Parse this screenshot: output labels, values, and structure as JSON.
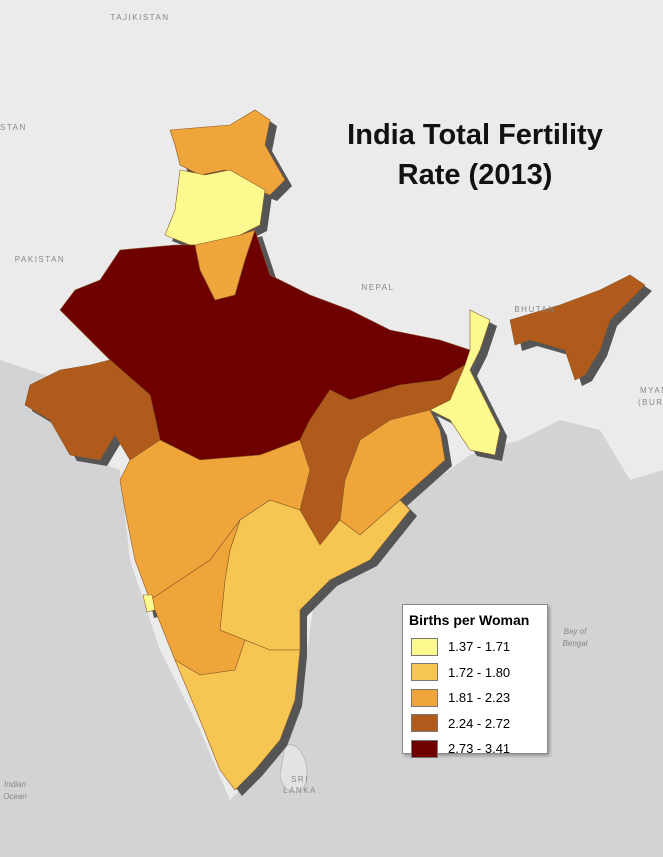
{
  "title": "India Total Fertility Rate (2013)",
  "legend": {
    "title": "Births per Woman",
    "classes": [
      {
        "label": "1.37 - 1.71",
        "color": "#fcfa8e"
      },
      {
        "label": "1.72 - 1.80",
        "color": "#f6c552"
      },
      {
        "label": "1.81 - 2.23",
        "color": "#f0a53a"
      },
      {
        "label": "2.24 - 2.72",
        "color": "#b05a1c"
      },
      {
        "label": "2.73 - 3.41",
        "color": "#6e0000"
      }
    ]
  },
  "regions": [
    2,
    0,
    2,
    4,
    3,
    2,
    3,
    2,
    0,
    3,
    1,
    2,
    0,
    1
  ],
  "places": [
    "TAJIKISTAN",
    "STAN",
    "PAKISTAN",
    "NEPAL",
    "BHUTAN",
    "MYANM",
    "(BURM",
    "Bay of",
    "Bengal",
    "SRI",
    "LANKA",
    "Indian",
    "Ocean"
  ]
}
